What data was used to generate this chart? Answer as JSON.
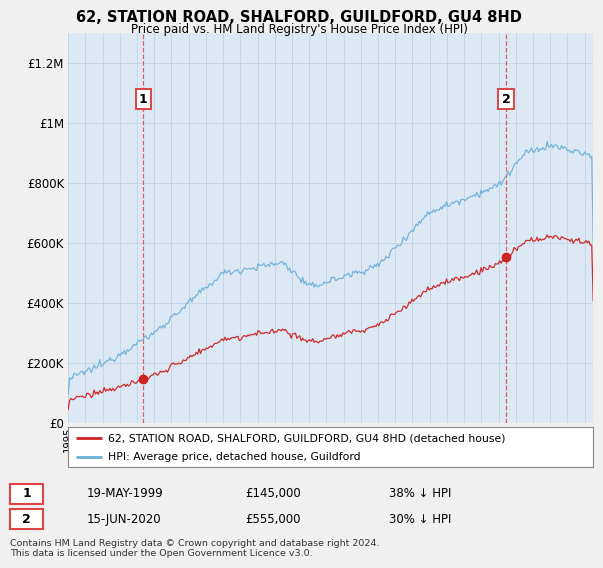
{
  "title": "62, STATION ROAD, SHALFORD, GUILDFORD, GU4 8HD",
  "subtitle": "Price paid vs. HM Land Registry's House Price Index (HPI)",
  "ylabel_ticks": [
    "£0",
    "£200K",
    "£400K",
    "£600K",
    "£800K",
    "£1M",
    "£1.2M"
  ],
  "ytick_values": [
    0,
    200000,
    400000,
    600000,
    800000,
    1000000,
    1200000
  ],
  "ylim": [
    0,
    1300000
  ],
  "xlim_start": 1995.0,
  "xlim_end": 2025.5,
  "sale1_year": 1999.37,
  "sale1_price": 145000,
  "sale1_label": "1",
  "sale1_date": "19-MAY-1999",
  "sale2_year": 2020.45,
  "sale2_price": 555000,
  "sale2_label": "2",
  "sale2_date": "15-JUN-2020",
  "hpi_color": "#6baed6",
  "hpi_fill_color": "#ddeeff",
  "price_color": "#cc2222",
  "vline_color": "#dd4444",
  "background_color": "#f0f0f0",
  "plot_bg_color": "#dce9f5",
  "legend_label_price": "62, STATION ROAD, SHALFORD, GUILDFORD, GU4 8HD (detached house)",
  "legend_label_hpi": "HPI: Average price, detached house, Guildford",
  "footer": "Contains HM Land Registry data © Crown copyright and database right 2024.\nThis data is licensed under the Open Government Licence v3.0.",
  "table_rows": [
    [
      "1",
      "19-MAY-1999",
      "£145,000",
      "38% ↓ HPI"
    ],
    [
      "2",
      "15-JUN-2020",
      "£555,000",
      "30% ↓ HPI"
    ]
  ]
}
